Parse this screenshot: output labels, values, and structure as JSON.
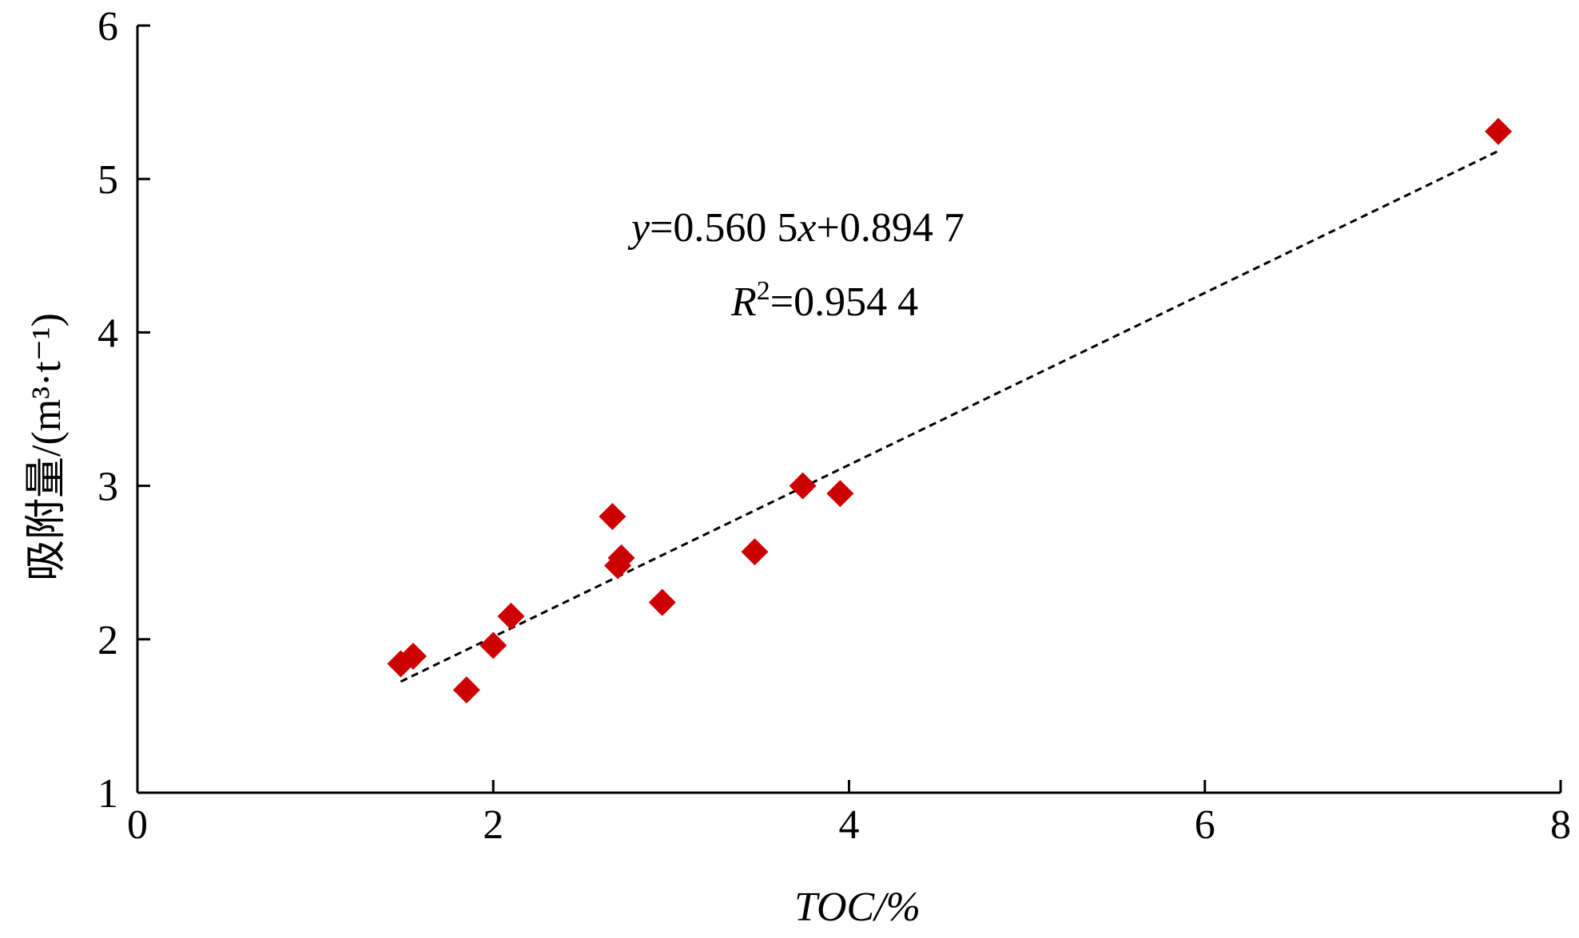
{
  "chart_data": {
    "type": "scatter",
    "title": "",
    "xlabel": "TOC/%",
    "ylabel": "吸附量/(m³·t⁻¹)",
    "xlim": [
      0,
      8
    ],
    "ylim": [
      1,
      6
    ],
    "xticks": [
      0,
      2,
      4,
      6,
      8
    ],
    "yticks": [
      1,
      2,
      3,
      4,
      5,
      6
    ],
    "grid": false,
    "legend": "none",
    "marker": "diamond",
    "marker_color": "#cc0000",
    "trendline_color": "#000000",
    "series": [
      {
        "points": [
          {
            "x": 1.48,
            "y": 1.84
          },
          {
            "x": 1.55,
            "y": 1.89
          },
          {
            "x": 1.85,
            "y": 1.67
          },
          {
            "x": 2.0,
            "y": 1.96
          },
          {
            "x": 2.1,
            "y": 2.15
          },
          {
            "x": 2.67,
            "y": 2.8
          },
          {
            "x": 2.7,
            "y": 2.48
          },
          {
            "x": 2.72,
            "y": 2.53
          },
          {
            "x": 2.95,
            "y": 2.24
          },
          {
            "x": 3.47,
            "y": 2.57
          },
          {
            "x": 3.74,
            "y": 3.0
          },
          {
            "x": 3.95,
            "y": 2.95
          },
          {
            "x": 7.65,
            "y": 5.31
          }
        ]
      }
    ],
    "trendline": {
      "slope": 0.5605,
      "intercept": 0.8947,
      "x_range": [
        1.48,
        7.65
      ],
      "style": "dashed"
    },
    "annotations": {
      "equation": {
        "y_var": "y",
        "eq1": "=0.560 5",
        "x_var": "x",
        "eq2": "+0.894 7"
      },
      "r2": {
        "r_var": "R",
        "sup": "2",
        "value": "=0.954 4"
      }
    }
  }
}
